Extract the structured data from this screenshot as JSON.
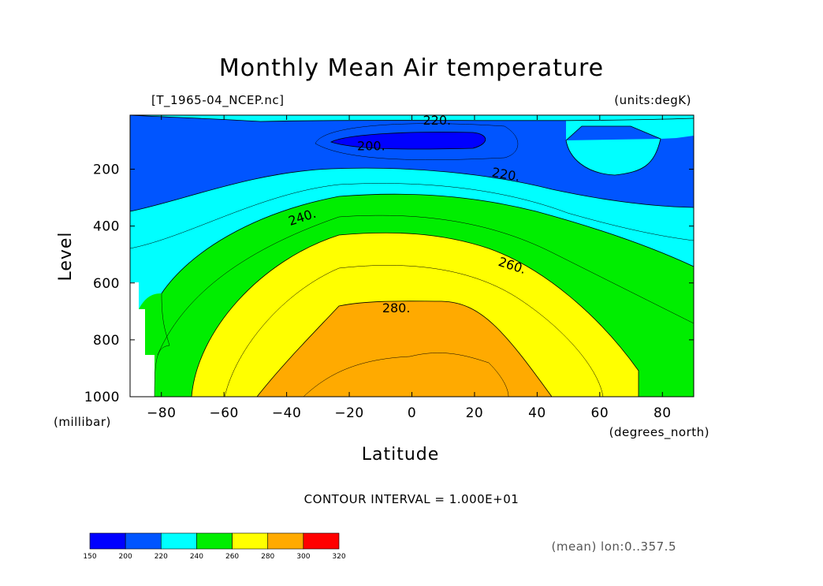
{
  "chart_data": {
    "type": "heatmap",
    "title": "Monthly Mean Air temperature",
    "subtitle_left": "[T_1965-04_NCEP.nc]",
    "subtitle_right": "(units:degK)",
    "xlabel": "Latitude",
    "x_units": "(degrees_north)",
    "ylabel": "Level",
    "y_units": "(millibar)",
    "xlim": [
      -90,
      90
    ],
    "ylim": [
      1000,
      10
    ],
    "x_ticks": [
      -80,
      -60,
      -40,
      -20,
      0,
      20,
      40,
      60,
      80
    ],
    "x_tick_labels": [
      "−80",
      "−60",
      "−40",
      "−20",
      "0",
      "20",
      "40",
      "60",
      "80"
    ],
    "y_ticks": [
      200,
      400,
      600,
      800,
      1000
    ],
    "contour_interval_text": "CONTOUR INTERVAL = 1.000E+01",
    "contour_labels": [
      {
        "text": "220.",
        "value": 220,
        "lat": 8,
        "level": 30
      },
      {
        "text": "200.",
        "value": 200,
        "lat": -13,
        "level": 120
      },
      {
        "text": "220.",
        "value": 220,
        "lat": 30,
        "level": 220
      },
      {
        "text": "240.",
        "value": 240,
        "lat": -35,
        "level": 370
      },
      {
        "text": "260.",
        "value": 260,
        "lat": 32,
        "level": 540
      },
      {
        "text": "280.",
        "value": 280,
        "lat": -5,
        "level": 690
      }
    ],
    "colorbar": {
      "levels": [
        150,
        200,
        220,
        240,
        260,
        280,
        300,
        320
      ],
      "colors": [
        "#0000ff",
        "#0055ff",
        "#00ffff",
        "#00ee00",
        "#ffff00",
        "#ffaa00",
        "#ff0000"
      ]
    },
    "footer": "(mean) lon:0..357.5"
  }
}
